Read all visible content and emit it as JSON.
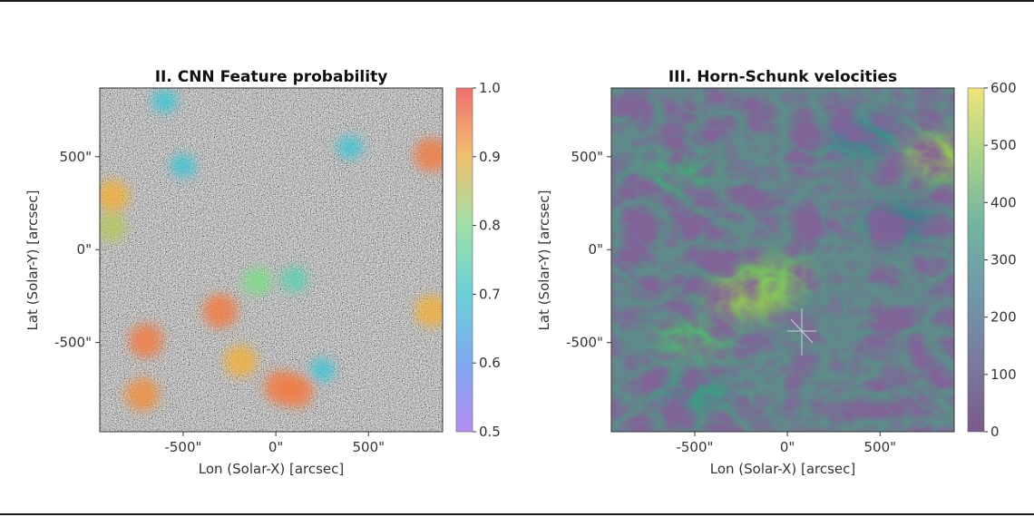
{
  "chart_data": [
    {
      "type": "heatmap",
      "title": "II. CNN Feature probability",
      "xlabel": "Lon (Solar-X) [arcsec]",
      "ylabel": "Lat (Solar-Y) [arcsec]",
      "x_ticks": [
        -500,
        0,
        500
      ],
      "x_tick_labels": [
        "-500\"",
        "0\"",
        "500\""
      ],
      "y_ticks": [
        500,
        0,
        -500
      ],
      "y_tick_labels": [
        "500\"",
        "0\"",
        "-500\""
      ],
      "xlim": [
        -950,
        900
      ],
      "ylim": [
        -980,
        870
      ],
      "colorbar": {
        "range": [
          0.5,
          1.0
        ],
        "ticks": [
          1.0,
          0.9,
          0.8,
          0.7,
          0.6,
          0.5
        ],
        "tick_labels": [
          "1.0",
          "0.9",
          "0.8",
          "0.7",
          "0.6",
          "0.5"
        ],
        "colormap": "rainbow"
      },
      "background": "grayscale magnetogram noise",
      "features": [
        {
          "x": -700,
          "y": -490,
          "p": 0.95
        },
        {
          "x": -300,
          "y": -330,
          "p": 0.95
        },
        {
          "x": -720,
          "y": -780,
          "p": 0.93
        },
        {
          "x": -190,
          "y": -600,
          "p": 0.9
        },
        {
          "x": 30,
          "y": -740,
          "p": 0.95
        },
        {
          "x": 110,
          "y": -760,
          "p": 0.95
        },
        {
          "x": 840,
          "y": 510,
          "p": 0.95
        },
        {
          "x": -880,
          "y": 290,
          "p": 0.9
        },
        {
          "x": 840,
          "y": -330,
          "p": 0.9
        },
        {
          "x": -890,
          "y": 120,
          "p": 0.85
        },
        {
          "x": -100,
          "y": -170,
          "p": 0.8
        },
        {
          "x": 100,
          "y": -160,
          "p": 0.75
        },
        {
          "x": -500,
          "y": 450,
          "p": 0.7
        },
        {
          "x": 400,
          "y": 550,
          "p": 0.7
        },
        {
          "x": -600,
          "y": 800,
          "p": 0.7
        },
        {
          "x": 250,
          "y": -650,
          "p": 0.7
        }
      ]
    },
    {
      "type": "heatmap",
      "title": "III. Horn-Schunk velocities",
      "xlabel": "Lon (Solar-X) [arcsec]",
      "ylabel": "Lat (Solar-Y) [arcsec]",
      "x_ticks": [
        -500,
        0,
        500
      ],
      "x_tick_labels": [
        "-500\"",
        "0\"",
        "500\""
      ],
      "y_ticks": [
        500,
        0,
        -500
      ],
      "y_tick_labels": [
        "500\"",
        "0\"",
        "-500\""
      ],
      "xlim": [
        -950,
        900
      ],
      "ylim": [
        -980,
        870
      ],
      "colorbar": {
        "range": [
          0,
          600
        ],
        "ticks": [
          600,
          500,
          400,
          300,
          200,
          100,
          0
        ],
        "tick_labels": [
          "600",
          "500",
          "400",
          "300",
          "200",
          "100",
          "0"
        ],
        "colormap": "viridis"
      },
      "features": [
        {
          "x": -200,
          "y": -250,
          "v": 520
        },
        {
          "x": -80,
          "y": -150,
          "v": 480
        },
        {
          "x": -500,
          "y": -480,
          "v": 420
        },
        {
          "x": 850,
          "y": 500,
          "v": 520
        },
        {
          "x": -600,
          "y": 420,
          "v": 380
        },
        {
          "x": 400,
          "y": 600,
          "v": 300
        },
        {
          "x": -500,
          "y": -780,
          "v": 340
        },
        {
          "x": 600,
          "y": 150,
          "v": 250
        }
      ]
    }
  ]
}
